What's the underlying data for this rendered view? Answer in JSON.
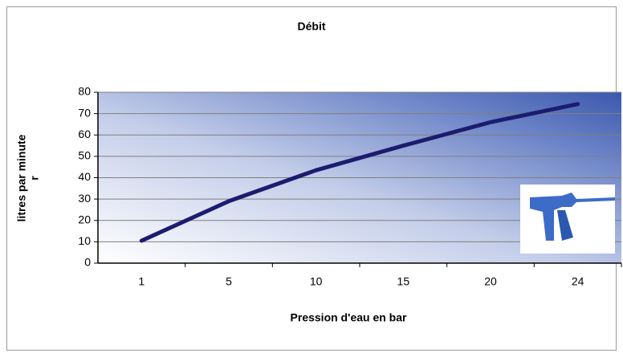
{
  "chart_data": {
    "type": "line",
    "title": "Débit",
    "x_label": "Pression d'eau en bar",
    "y_label": [
      "litres par minute",
      "r"
    ],
    "categories": [
      "1",
      "5",
      "10",
      "15",
      "20",
      "24"
    ],
    "series": [
      {
        "name": "Débit",
        "color": "#1c1c6e",
        "values": [
          10.5,
          29,
          43.5,
          55,
          66,
          74.5
        ]
      }
    ],
    "ylim": [
      0,
      80
    ],
    "yticks": [
      0,
      10,
      20,
      30,
      40,
      50,
      60,
      70,
      80
    ],
    "grid": true
  }
}
